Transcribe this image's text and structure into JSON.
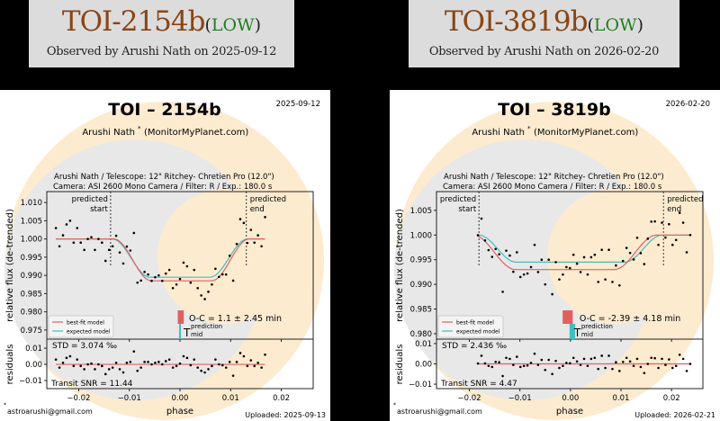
{
  "banners": [
    {
      "planet": "TOI-2154b",
      "open": "(",
      "priority": "LOW",
      "close": ")",
      "observed": "Observed by Arushi Nath on 2025-09-12"
    },
    {
      "planet": "TOI-3819b",
      "open": "(",
      "priority": "LOW",
      "close": ")",
      "observed": "Observed by Arushi Nath on 2026-02-20"
    }
  ],
  "colors": {
    "best_fit": "#e06060",
    "expected": "#3fbfbf",
    "planet_title": "#8b4513",
    "priority": "#1f7f1f"
  },
  "chart_data": [
    {
      "type": "scatter",
      "title": "TOI – 2154b",
      "date": "2025-09-12",
      "observer": "Arushi Nath",
      "observer_mark": "*",
      "site": "(MonitorMyPlanet.com)",
      "setup_line1": "Arushi Nath / Telescope: 12\" Ritchey- Chretien Pro (12.0\")",
      "setup_line2": "Camera: ASI 2600 Mono Camera / Filter: R / Exp.: 180.0 s",
      "predicted_start_label": [
        "predicted",
        "start"
      ],
      "predicted_end_label": [
        "predicted",
        "end"
      ],
      "predicted_start": -0.0137,
      "predicted_end": 0.0131,
      "ylabel": "relative flux (de-trended)",
      "resid_ylabel": "residuals",
      "xlabel": "phase",
      "xlim": [
        -0.0263,
        0.0263
      ],
      "ylim": [
        0.9725,
        1.013
      ],
      "resid_ylim": [
        -0.015,
        0.0156
      ],
      "xticks": [
        -0.02,
        -0.01,
        0.0,
        0.01,
        0.02
      ],
      "xtick_labels": [
        "−0.02",
        "−0.01",
        "0.00",
        "0.01",
        "0.02"
      ],
      "yticks": [
        0.975,
        0.98,
        0.985,
        0.99,
        0.995,
        1.0,
        1.005,
        1.01
      ],
      "ytick_labels": [
        "0.975",
        "0.980",
        "0.985",
        "0.990",
        "0.995",
        "1.000",
        "1.005",
        "1.010"
      ],
      "resid_yticks": [
        -0.01,
        0.0,
        0.01
      ],
      "resid_ytick_labels": [
        "−0.01",
        "0.00",
        "0.01"
      ],
      "legend": [
        "best-fit model",
        "expected model"
      ],
      "legend_position": "lower-left",
      "best_fit": {
        "t0": 0.0003,
        "half_duration": 0.0134,
        "ingress": 0.0075,
        "depth": 0.0115
      },
      "expected": {
        "t0": 0.0,
        "half_duration": 0.0134,
        "ingress": 0.0075,
        "depth": 0.0105
      },
      "oc_text": "O-C = 1.1 ± 2.45 min",
      "tmid_label": "T",
      "tmid_sup": "prediction",
      "tmid_sub": "mid",
      "std_text": "STD = 3.074 ‰",
      "snr_text": "Transit SNR = 11.44",
      "x_start": -0.0245,
      "x_step": 0.0007,
      "residuals": [
        0.003,
        -0.002,
        0.001,
        0.004,
        0.005,
        -0.001,
        0.003,
        -0.001,
        -0.003,
        0,
        0.0005,
        -0.003,
        0,
        -0.001,
        -0.006,
        -0.003,
        -0.002,
        0.001,
        -0.003,
        -0.005,
        0.001,
        0.0015,
        0.008,
        -0.004,
        -0.002,
        0.0015,
        0.0015,
        0,
        0.001,
        0.0015,
        0,
        0.002,
        0.003,
        -0.002,
        -0.001,
        0.0005,
        0.005,
        0.004,
        -0.0005,
        0.003,
        -0.002,
        -0.004,
        -0.005,
        -0.003,
        -0.001,
        0.003,
        0,
        -0.0005,
        -0.002,
        0.0015,
        -0.007,
        0.0015,
        0.007,
        0.005,
        -0.001,
        0.0025,
        -0.001,
        0.001,
        -0.002,
        0.006
      ],
      "email": "astroarushi@gmail.com",
      "email_mark": "*",
      "uploaded": "Uploaded: 2025-09-13"
    },
    {
      "type": "scatter",
      "title": "TOI – 3819b",
      "date": "2026-02-20",
      "observer": "Arushi Nath",
      "observer_mark": "*",
      "site": "(MonitorMyPlanet.com)",
      "setup_line1": "Arushi Nath / Telescope: 12\" Ritchey- Chretien Pro (12.0\")",
      "setup_line2": "Camera: ASI 2600 Mono Camera / Filter: R / Exp.: 180.0 s",
      "predicted_start_label": [
        "predicted",
        "start"
      ],
      "predicted_end_label": [
        "predicted",
        "end"
      ],
      "predicted_start": -0.0181,
      "predicted_end": 0.0184,
      "ylabel": "relative flux (de-trended)",
      "resid_ylabel": "residuals",
      "xlabel": "phase",
      "xlim": [
        -0.0265,
        0.0262
      ],
      "ylim": [
        0.9789,
        1.0088
      ],
      "resid_ylim": [
        -0.0122,
        0.0122
      ],
      "xticks": [
        -0.02,
        -0.01,
        0.0,
        0.01,
        0.02
      ],
      "xtick_labels": [
        "−0.02",
        "−0.01",
        "0.00",
        "0.01",
        "0.02"
      ],
      "yticks": [
        0.98,
        0.985,
        0.99,
        0.995,
        1.0,
        1.005
      ],
      "ytick_labels": [
        "0.980",
        "0.985",
        "0.990",
        "0.995",
        "1.000",
        "1.005"
      ],
      "resid_yticks": [
        -0.01,
        0.0,
        0.01
      ],
      "resid_ytick_labels": [
        "−0.01",
        "0.00",
        "0.01"
      ],
      "legend": [
        "best-fit model",
        "expected model"
      ],
      "legend_position": "lower-left",
      "best_fit": {
        "t0": -0.0011,
        "half_duration": 0.0182,
        "ingress": 0.0085,
        "depth": 0.007
      },
      "expected": {
        "t0": 0.0,
        "half_duration": 0.0182,
        "ingress": 0.0075,
        "depth": 0.0055
      },
      "oc_text": "O-C = -2.39 ± 4.18 min",
      "tmid_label": "T",
      "tmid_sup": "prediction",
      "tmid_sub": "mid",
      "std_text": "STD = 2.436 ‰",
      "snr_text": "Transit SNR = 4.47",
      "x_start": -0.0183,
      "x_step": 0.0007,
      "residuals": [
        0.0002,
        0.004,
        0.0002,
        -0.001,
        -0.0015,
        0.001,
        0.0008,
        -0.006,
        0.003,
        0.0025,
        -0.0005,
        0.0035,
        -0.0015,
        -0.001,
        -0.0008,
        0.0005,
        0.005,
        -0.0005,
        0.002,
        -0.003,
        0.002,
        -0.005,
        0.0015,
        -0.002,
        -0.001,
        0.0005,
        0.0003,
        0.003,
        0.0012,
        -0.0005,
        0.0025,
        -0.001,
        0.0025,
        0.003,
        -0.0025,
        0.004,
        -0.002,
        0.004,
        -0.0025,
        0.0008,
        -0.0035,
        0.001,
        0.003,
        0.0012,
        -0.001,
        0.0025,
        -0.0015,
        -0.0045,
        0,
        0.003,
        0.0028,
        -0.002,
        0.0025,
        -0.0005,
        0.0022,
        -0.002,
        -0.001,
        0.0045,
        0.0025,
        -0.0035,
        0
      ],
      "email": "astroarushi@gmail.com",
      "email_mark": "*",
      "uploaded": "Uploaded: 2026-02-21"
    }
  ]
}
